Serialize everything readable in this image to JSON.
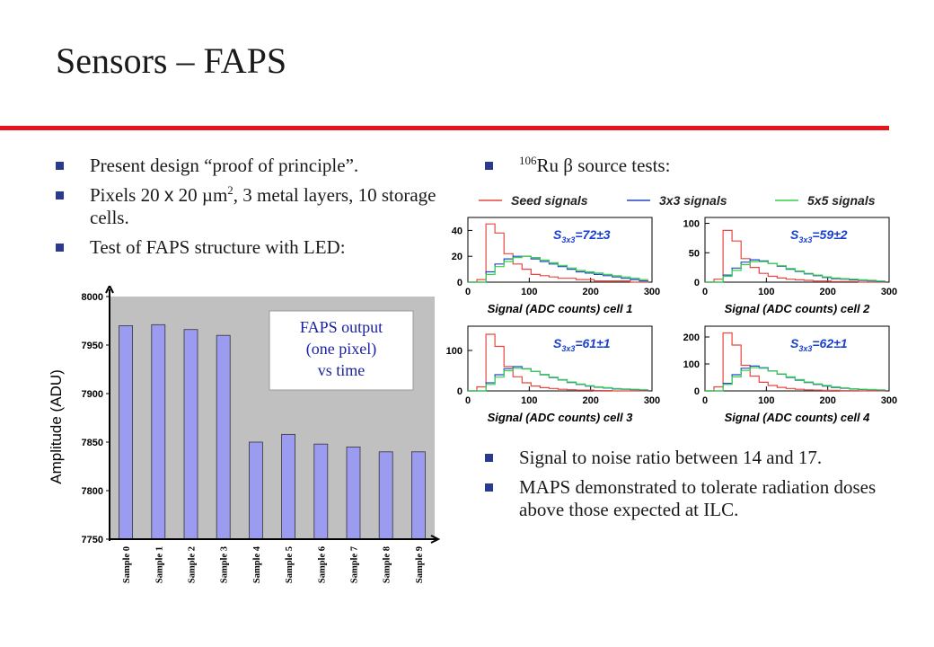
{
  "slide": {
    "title": "Sensors – FAPS",
    "accent_color": "#e8141c",
    "bullet_color": "#2a3b8f"
  },
  "left_bullets": {
    "b1": "Present design “proof of principle”.",
    "b2_pre": "Pixels 20 ",
    "b2_x1": "x",
    "b2_mid": " 20 ",
    "b2_mu": "µ",
    "b2_m": "m",
    "b2_sup": "2",
    "b2_post": ", 3 metal layers, 10 storage cells.",
    "b3": "Test of FAPS structure with LED:"
  },
  "right_top_bullet": {
    "sup": "106",
    "text_pre": "Ru ",
    "beta": "β",
    "text_post": " source tests:"
  },
  "right_bottom_bullets": {
    "b1": "Signal to noise ratio between 14 and 17.",
    "b2": "MAPS demonstrated to tolerate radiation doses above those expected at ILC."
  },
  "chart_data": [
    {
      "type": "bar",
      "ylabel": "Amplitude (ADU)",
      "xlabel": "",
      "categories": [
        "Sample 0",
        "Sample 1",
        "Sample 2",
        "Sample 3",
        "Sample 4",
        "Sample 5",
        "Sample 6",
        "Sample 7",
        "Sample 8",
        "Sample 9"
      ],
      "values": [
        7970,
        7971,
        7966,
        7960,
        7850,
        7858,
        7848,
        7845,
        7840,
        7840
      ],
      "ylim": [
        7750,
        8000
      ],
      "yticks": [
        "7750",
        "7800",
        "7850",
        "7900",
        "7950",
        "8000"
      ],
      "annotation": [
        "FAPS output",
        "(one pixel)",
        "vs time"
      ],
      "bar_color": "#9b9bf0",
      "plot_background": "#c0c0c0",
      "grid": false
    },
    {
      "type": "line",
      "legend": [
        "Seed signals",
        "3x3 signals",
        "5x5 signals"
      ],
      "legend_placement": "top",
      "series_colors": [
        "#e8473f",
        "#2247c9",
        "#36d04a"
      ],
      "xlim": [
        0,
        300
      ],
      "xticks": [
        "0",
        "100",
        "200",
        "300"
      ],
      "panels": [
        {
          "xlabel": "Signal (ADC counts) cell 1",
          "yticks": [
            "0",
            "20",
            "40"
          ],
          "ylim": [
            0,
            50
          ],
          "label_S": "S",
          "label_sub": "3x3",
          "label_val": "=72±3",
          "seed": [
            0,
            2,
            45,
            38,
            22,
            14,
            10,
            6,
            5,
            4,
            3,
            3,
            2,
            2,
            1,
            1,
            1,
            1,
            0,
            0
          ],
          "s3x3": [
            0,
            0,
            8,
            14,
            18,
            20,
            20,
            18,
            16,
            14,
            12,
            10,
            8,
            7,
            6,
            5,
            4,
            3,
            2,
            1
          ],
          "s5x5": [
            0,
            0,
            6,
            12,
            16,
            19,
            20,
            19,
            17,
            15,
            13,
            11,
            9,
            8,
            7,
            6,
            5,
            4,
            3,
            2
          ]
        },
        {
          "xlabel": "Signal (ADC counts) cell 2",
          "yticks": [
            "0",
            "50",
            "100"
          ],
          "ylim": [
            0,
            110
          ],
          "label_S": "S",
          "label_sub": "3x3",
          "label_val": "=59±2",
          "seed": [
            0,
            5,
            88,
            70,
            40,
            25,
            15,
            10,
            7,
            5,
            4,
            3,
            2,
            2,
            1,
            1,
            1,
            0,
            0,
            0
          ],
          "s3x3": [
            0,
            0,
            12,
            24,
            34,
            38,
            36,
            32,
            27,
            22,
            18,
            14,
            11,
            8,
            6,
            5,
            4,
            3,
            2,
            1
          ],
          "s5x5": [
            0,
            0,
            10,
            20,
            30,
            35,
            35,
            32,
            28,
            23,
            19,
            15,
            12,
            9,
            7,
            6,
            5,
            4,
            3,
            2
          ]
        },
        {
          "xlabel": "Signal (ADC counts) cell 3",
          "yticks": [
            "0",
            "100"
          ],
          "ylim": [
            0,
            160
          ],
          "label_S": "S",
          "label_sub": "3x3",
          "label_val": "=61±1",
          "seed": [
            0,
            10,
            140,
            110,
            60,
            35,
            20,
            12,
            8,
            6,
            4,
            3,
            2,
            2,
            1,
            1,
            0,
            0,
            0,
            0
          ],
          "s3x3": [
            0,
            0,
            20,
            40,
            55,
            60,
            55,
            48,
            40,
            33,
            27,
            21,
            16,
            12,
            9,
            7,
            5,
            4,
            3,
            2
          ],
          "s5x5": [
            0,
            0,
            16,
            34,
            50,
            56,
            54,
            48,
            41,
            34,
            28,
            22,
            17,
            13,
            10,
            8,
            6,
            5,
            4,
            3
          ]
        },
        {
          "xlabel": "Signal (ADC counts) cell 4",
          "yticks": [
            "0",
            "100",
            "200"
          ],
          "ylim": [
            0,
            240
          ],
          "label_S": "S",
          "label_sub": "3x3",
          "label_val": "=62±1",
          "seed": [
            0,
            15,
            215,
            170,
            95,
            55,
            32,
            20,
            13,
            9,
            6,
            4,
            3,
            2,
            2,
            1,
            1,
            0,
            0,
            0
          ],
          "s3x3": [
            0,
            0,
            28,
            60,
            84,
            92,
            86,
            74,
            62,
            50,
            40,
            31,
            24,
            18,
            13,
            10,
            7,
            5,
            4,
            3
          ],
          "s5x5": [
            0,
            0,
            24,
            52,
            76,
            86,
            84,
            74,
            63,
            52,
            42,
            33,
            26,
            20,
            15,
            11,
            8,
            6,
            5,
            4
          ]
        }
      ]
    }
  ]
}
